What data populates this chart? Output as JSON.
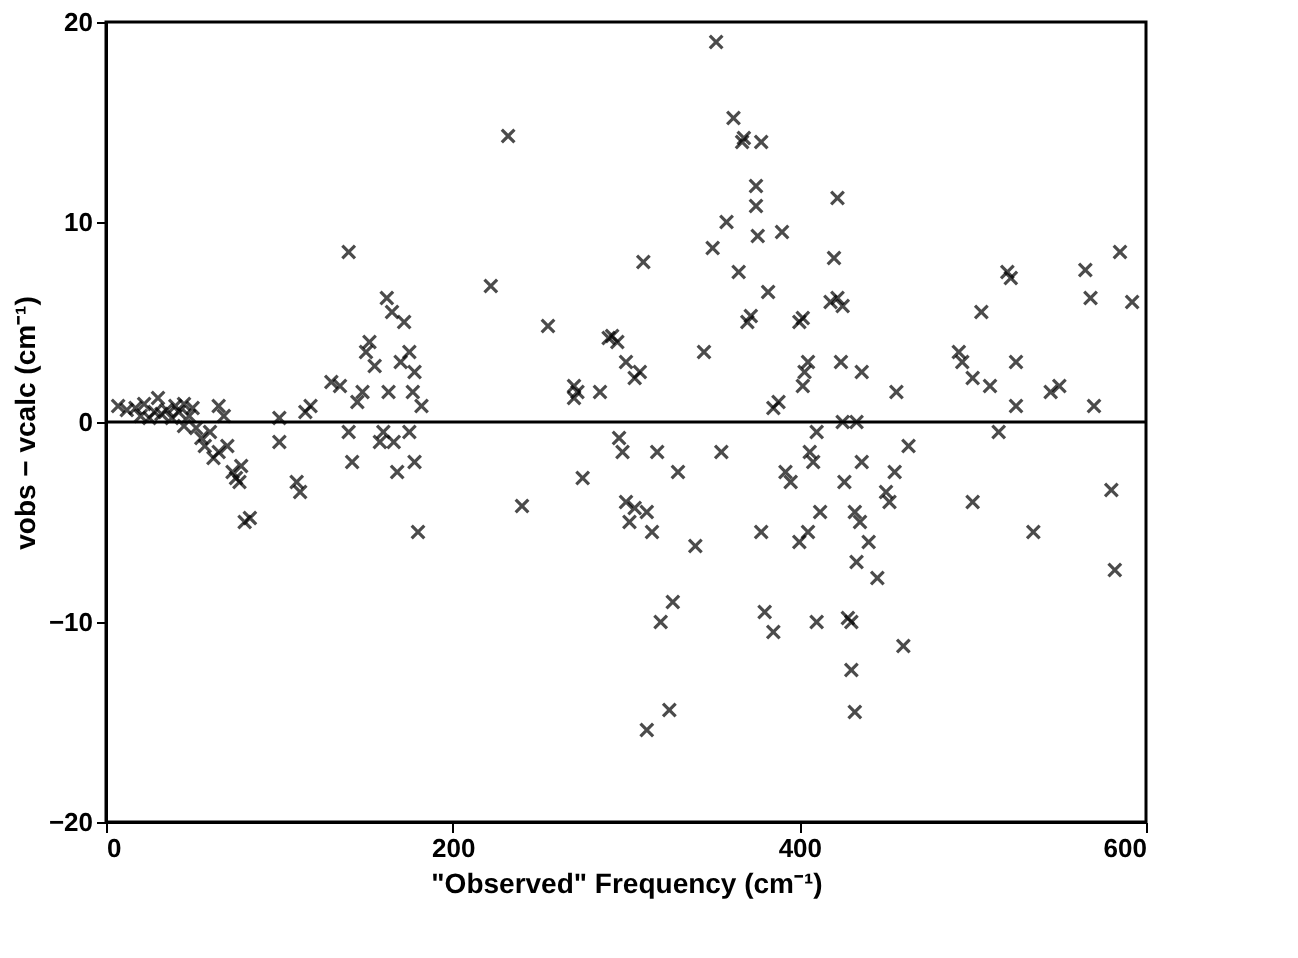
{
  "chart_data": {
    "type": "scatter",
    "xlabel": "\"Observed\" Frequency (cm⁻¹)",
    "ylabel": "vobs − vcalc (cm⁻¹)",
    "xlim": [
      0,
      600
    ],
    "ylim": [
      -20,
      20
    ],
    "xticks": [
      0,
      200,
      400,
      600
    ],
    "yticks": [
      -20,
      -10,
      0,
      10,
      20
    ],
    "grid": false,
    "marker": "cross",
    "ref_lines": [
      {
        "axis": "y",
        "value": 0,
        "color": "#000000",
        "line_style": "solid"
      }
    ],
    "series": [
      {
        "color": "#000000",
        "x": [
          7,
          12,
          17,
          20,
          22,
          25,
          28,
          30,
          32,
          35,
          38,
          40,
          42,
          45,
          48,
          50,
          52,
          55,
          57,
          60,
          62,
          65,
          68,
          70,
          73,
          75,
          77,
          78,
          80,
          83,
          65,
          45,
          100,
          100,
          110,
          112,
          115,
          118,
          130,
          135,
          140,
          140,
          142,
          145,
          148,
          150,
          152,
          155,
          158,
          160,
          162,
          163,
          165,
          166,
          168,
          170,
          172,
          175,
          175,
          177,
          178,
          180,
          182,
          178,
          222,
          232,
          240,
          255,
          270,
          270,
          272,
          275,
          285,
          290,
          292,
          295,
          296,
          298,
          300,
          300,
          302,
          305,
          305,
          308,
          310,
          312,
          312,
          315,
          318,
          320,
          325,
          327,
          330,
          340,
          345,
          350,
          352,
          355,
          358,
          362,
          365,
          367,
          368,
          370,
          372,
          375,
          375,
          376,
          378,
          378,
          380,
          382,
          385,
          385,
          388,
          390,
          392,
          395,
          400,
          400,
          402,
          402,
          403,
          405,
          405,
          406,
          408,
          410,
          410,
          412,
          418,
          420,
          422,
          422,
          424,
          425,
          425,
          426,
          428,
          430,
          430,
          432,
          432,
          433,
          435,
          433,
          436,
          436,
          440,
          445,
          450,
          452,
          455,
          456,
          460,
          463,
          492,
          494,
          500,
          500,
          505,
          510,
          515,
          520,
          522,
          525,
          525,
          535,
          545,
          550,
          565,
          568,
          570,
          580,
          582,
          585,
          592
        ],
        "values": [
          0.8,
          0.6,
          0.7,
          0.3,
          0.9,
          0.2,
          0.5,
          1.2,
          0.4,
          0.6,
          0.2,
          0.8,
          0.5,
          0.9,
          0.3,
          0.7,
          -0.3,
          -0.8,
          -1.2,
          -0.5,
          -1.8,
          -1.5,
          0.3,
          -1.2,
          -2.5,
          -2.8,
          -3,
          -2.2,
          -5,
          -4.8,
          0.8,
          -0.2,
          0.2,
          -1,
          -3,
          -3.5,
          0.5,
          0.8,
          2,
          1.8,
          8.5,
          -0.5,
          -2,
          1,
          1.5,
          3.5,
          4,
          2.8,
          -1,
          -0.5,
          6.2,
          1.5,
          5.5,
          -1,
          -2.5,
          3,
          5,
          3.5,
          -0.5,
          1.5,
          -2,
          -5.5,
          0.8,
          2.5,
          6.8,
          14.3,
          -4.2,
          4.8,
          1.8,
          1.2,
          1.5,
          -2.8,
          1.5,
          4.2,
          4.3,
          4,
          -0.8,
          -1.5,
          3,
          -4,
          -5,
          -4.3,
          2.2,
          2.5,
          8,
          -4.5,
          -15.4,
          -5.5,
          -1.5,
          -10,
          -14.4,
          -9,
          -2.5,
          -6.2,
          3.5,
          8.7,
          19,
          -1.5,
          10,
          15.2,
          7.5,
          14,
          14.2,
          5,
          5.3,
          10.8,
          11.8,
          9.3,
          14,
          -5.5,
          -9.5,
          6.5,
          -10.5,
          0.7,
          1,
          9.5,
          -2.5,
          -3,
          -6,
          5,
          5.2,
          1.8,
          2.5,
          3,
          -5.5,
          -1.5,
          -2,
          -0.5,
          -10,
          -4.5,
          6,
          8.2,
          11.2,
          6.2,
          3,
          5.8,
          0,
          -3,
          -9.8,
          -10,
          -12.4,
          -14.5,
          -4.5,
          -7,
          -5,
          0,
          2.5,
          -2,
          -6,
          -7.8,
          -3.5,
          -4,
          -2.5,
          1.5,
          -11.2,
          -1.2,
          3.5,
          3,
          2.2,
          -4,
          5.5,
          1.8,
          -0.5,
          7.5,
          7.2,
          3,
          0.8,
          -5.5,
          1.5,
          1.8,
          7.6,
          6.2,
          0.8,
          -3.4,
          -7.4,
          8.5,
          6
        ]
      }
    ]
  }
}
